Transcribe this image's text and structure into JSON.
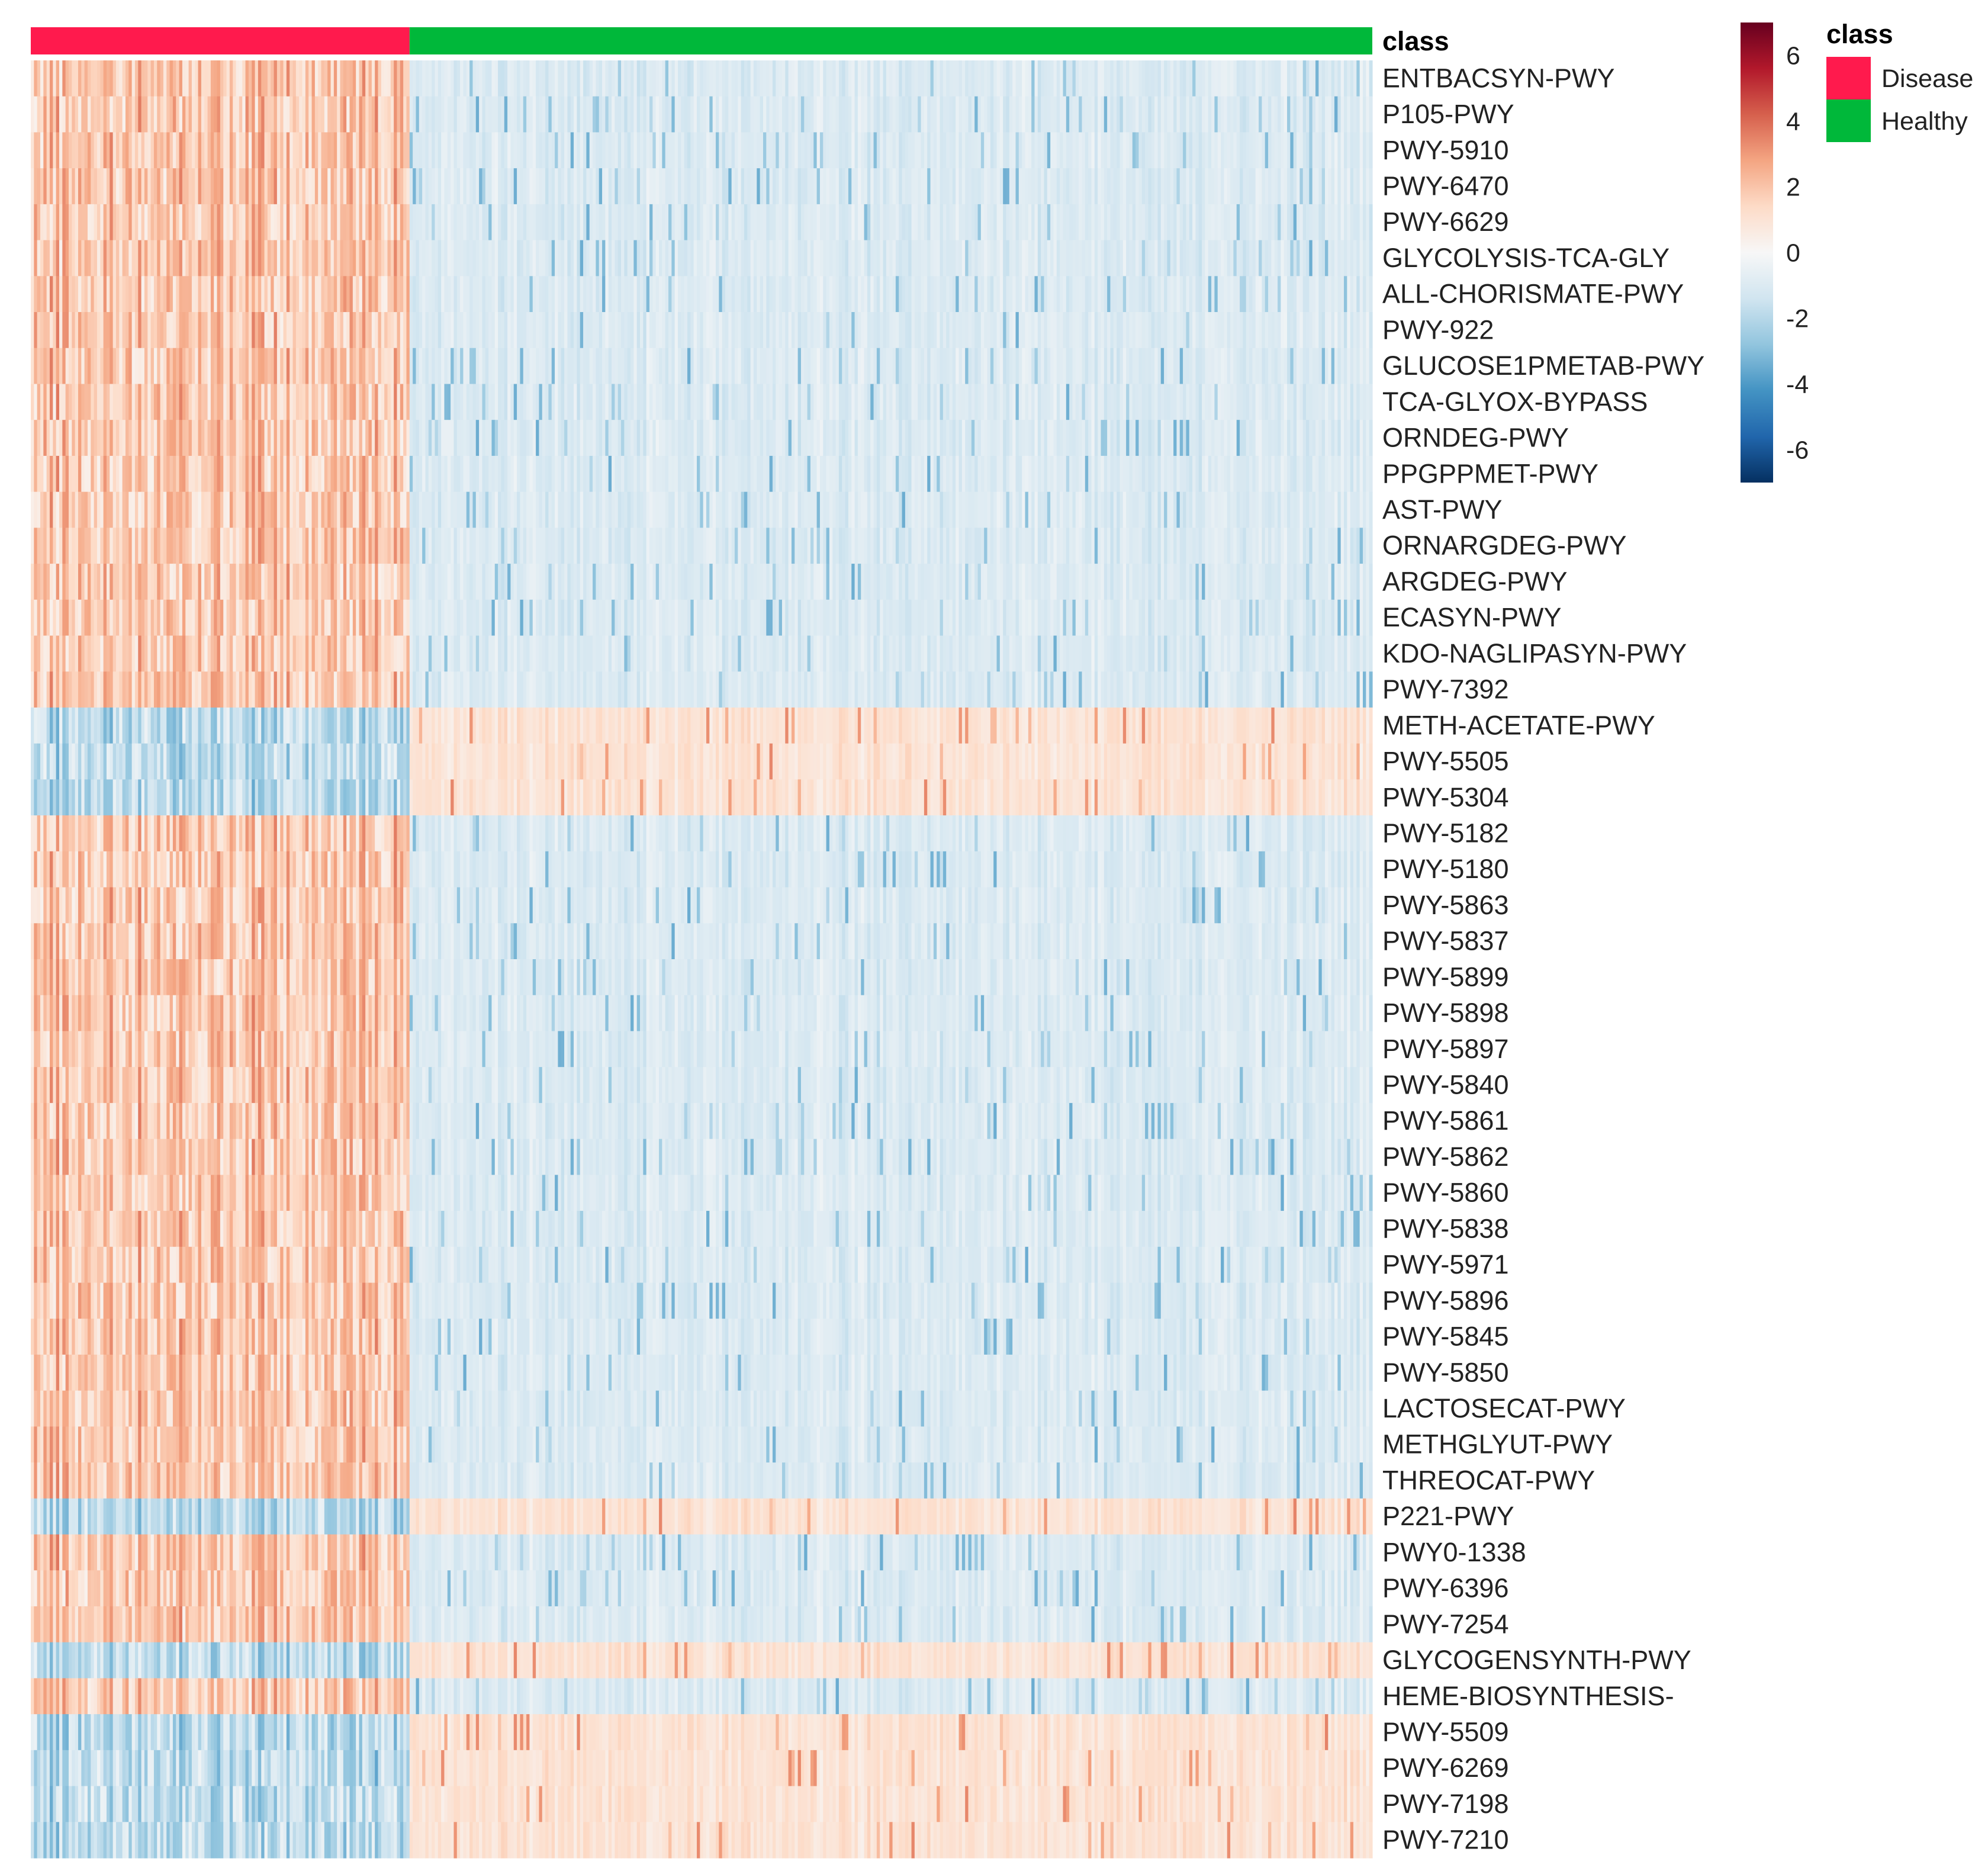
{
  "chart_data": {
    "type": "heatmap",
    "title": "",
    "annotation": {
      "title": "class",
      "groups": [
        {
          "name": "Disease",
          "color": "#ff1a4d",
          "n_samples": 120
        },
        {
          "name": "Healthy",
          "color": "#00b83a",
          "n_samples": 305
        }
      ]
    },
    "rows": [
      "ENTBACSYN-PWY",
      "P105-PWY",
      "PWY-5910",
      "PWY-6470",
      "PWY-6629",
      "GLYCOLYSIS-TCA-GLY",
      "ALL-CHORISMATE-PWY",
      "PWY-922",
      "GLUCOSE1PMETAB-PWY",
      "TCA-GLYOX-BYPASS",
      "ORNDEG-PWY",
      "PPGPPMET-PWY",
      "AST-PWY",
      "ORNARGDEG-PWY",
      "ARGDEG-PWY",
      "ECASYN-PWY",
      "KDO-NAGLIPASYN-PWY",
      "PWY-7392",
      "METH-ACETATE-PWY",
      "PWY-5505",
      "PWY-5304",
      "PWY-5182",
      "PWY-5180",
      "PWY-5863",
      "PWY-5837",
      "PWY-5899",
      "PWY-5898",
      "PWY-5897",
      "PWY-5840",
      "PWY-5861",
      "PWY-5862",
      "PWY-5860",
      "PWY-5838",
      "PWY-5971",
      "PWY-5896",
      "PWY-5845",
      "PWY-5850",
      "LACTOSECAT-PWY",
      "METHGLYUT-PWY",
      "THREOCAT-PWY",
      "P221-PWY",
      "PWY0-1338",
      "PWY-6396",
      "PWY-7254",
      "GLYCOGENSYNTH-PWY",
      "HEME-BIOSYNTHESIS-",
      "PWY-5509",
      "PWY-6269",
      "PWY-7198",
      "PWY-7210"
    ],
    "row_direction": [
      1,
      1,
      1,
      1,
      1,
      1,
      1,
      1,
      1,
      1,
      1,
      1,
      1,
      1,
      1,
      1,
      1,
      1,
      -1,
      -1,
      -1,
      1,
      1,
      1,
      1,
      1,
      1,
      1,
      1,
      1,
      1,
      1,
      1,
      1,
      1,
      1,
      1,
      1,
      1,
      1,
      -1,
      1,
      1,
      1,
      -1,
      1,
      -1,
      -1,
      -1,
      -1
    ],
    "colorbar": {
      "ticks": [
        6,
        4,
        2,
        0,
        -2,
        -4,
        -6
      ],
      "range": [
        -7,
        7
      ],
      "colors": [
        "#053061",
        "#2166ac",
        "#4393c3",
        "#92c5de",
        "#d1e5f0",
        "#f7f7f7",
        "#fddbc7",
        "#f4a582",
        "#d6604d",
        "#b2182b",
        "#67001f"
      ]
    }
  }
}
